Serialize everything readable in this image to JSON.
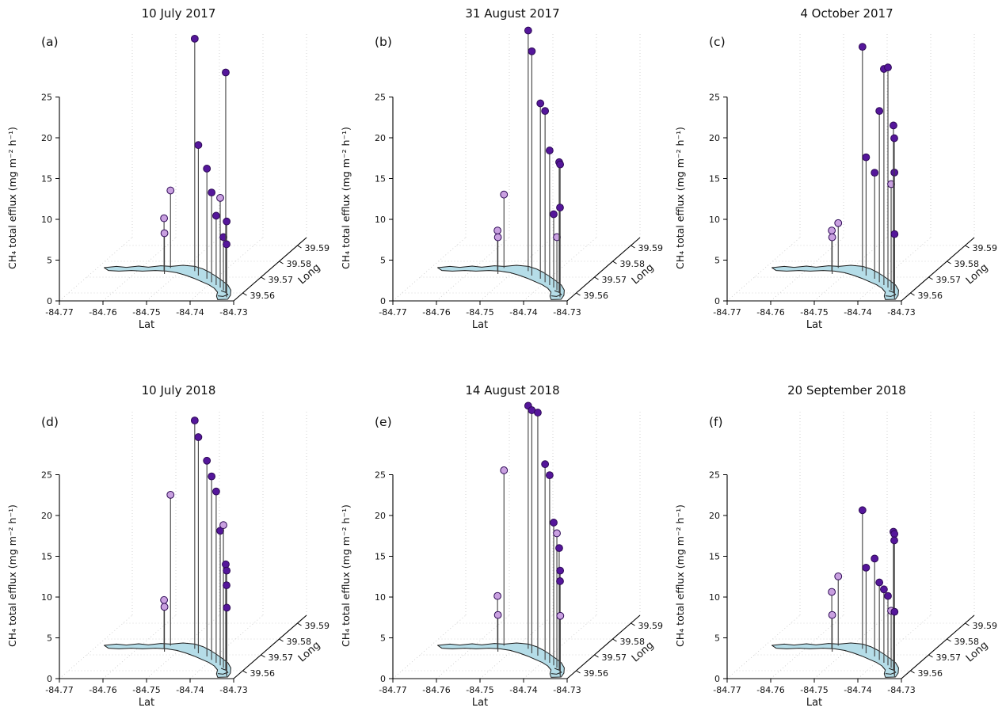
{
  "figure": {
    "colors": {
      "dark_point": "#55169b",
      "light_point": "#c9a0e0",
      "point_edge": "#2d0a55",
      "stem": "#3f3f3f",
      "lake_fill": "#b5dde8",
      "lake_edge": "#1b1b1b",
      "axis": "#000000",
      "grid": "#c9c9c9",
      "text": "#111111"
    }
  },
  "chart_data": {
    "type": "scatter",
    "projection": "3d-stem-map",
    "x_axis": {
      "label": "Lat",
      "ticks": [
        -84.77,
        -84.76,
        -84.75,
        -84.74,
        -84.73
      ],
      "range": [
        -84.77,
        -84.73
      ]
    },
    "depth_axis": {
      "label": "Long",
      "ticks": [
        39.56,
        39.57,
        39.58,
        39.59
      ],
      "range": [
        39.555,
        39.595
      ]
    },
    "z_axis": {
      "label": "CH₄ total efflux (mg m⁻² h⁻¹)",
      "ticks": [
        0,
        5,
        10,
        15,
        20,
        25
      ],
      "range": [
        0,
        25
      ]
    },
    "point_format": [
      "longitude",
      "latitude",
      "efflux_mg_m2_h",
      "color_class(d=dark,l=light)"
    ],
    "lake_polygon": [
      [
        -84.7685,
        39.576
      ],
      [
        -84.766,
        39.5768
      ],
      [
        -84.7635,
        39.5762
      ],
      [
        -84.761,
        39.577
      ],
      [
        -84.7585,
        39.5763
      ],
      [
        -84.756,
        39.5772
      ],
      [
        -84.7535,
        39.5768
      ],
      [
        -84.751,
        39.5775
      ],
      [
        -84.748,
        39.5768
      ],
      [
        -84.7455,
        39.5752
      ],
      [
        -84.743,
        39.573
      ],
      [
        -84.7405,
        39.5705
      ],
      [
        -84.738,
        39.5678
      ],
      [
        -84.7355,
        39.565
      ],
      [
        -84.7335,
        39.5618
      ],
      [
        -84.7322,
        39.5585
      ],
      [
        -84.7318,
        39.556
      ],
      [
        -84.734,
        39.5558
      ],
      [
        -84.7352,
        39.558
      ],
      [
        -84.736,
        39.5605
      ],
      [
        -84.7378,
        39.563
      ],
      [
        -84.74,
        39.5652
      ],
      [
        -84.7425,
        39.5672
      ],
      [
        -84.745,
        39.5692
      ],
      [
        -84.7478,
        39.5712
      ],
      [
        -84.7505,
        39.5728
      ],
      [
        -84.7532,
        39.5738
      ],
      [
        -84.756,
        39.5742
      ],
      [
        -84.7588,
        39.5738
      ],
      [
        -84.7615,
        39.5742
      ],
      [
        -84.7642,
        39.5738
      ],
      [
        -84.7668,
        39.5742
      ]
    ],
    "creek_line": [
      [
        -84.7356,
        39.5615
      ],
      [
        -84.734,
        39.5603
      ],
      [
        -84.733,
        39.559
      ],
      [
        -84.7336,
        39.5578
      ],
      [
        -84.735,
        39.5582
      ]
    ],
    "panels": [
      {
        "label": "(a)",
        "title": "10 July 2017",
        "points": [
          [
            -84.7532,
            39.5758,
            9.5,
            "l"
          ],
          [
            -84.7538,
            39.5737,
            6.5,
            "l"
          ],
          [
            -84.753,
            39.572,
            5.0,
            "l"
          ],
          [
            -84.7468,
            39.5738,
            28.5,
            "d"
          ],
          [
            -84.7448,
            39.571,
            16.0,
            "d"
          ],
          [
            -84.742,
            39.569,
            13.5,
            "d"
          ],
          [
            -84.74,
            39.5668,
            11.0,
            "d"
          ],
          [
            -84.7382,
            39.565,
            8.5,
            "d"
          ],
          [
            -84.7366,
            39.5634,
            11.0,
            "l"
          ],
          [
            -84.7352,
            39.5618,
            6.5,
            "d"
          ],
          [
            -84.734,
            39.5602,
            27.0,
            "d"
          ],
          [
            -84.7332,
            39.5588,
            9.0,
            "d"
          ],
          [
            -84.7326,
            39.5573,
            6.5,
            "d"
          ]
        ]
      },
      {
        "label": "(b)",
        "title": "31 August 2017",
        "points": [
          [
            -84.7532,
            39.5758,
            9.0,
            "l"
          ],
          [
            -84.7538,
            39.5737,
            5.0,
            "l"
          ],
          [
            -84.753,
            39.572,
            4.5,
            "l"
          ],
          [
            -84.7468,
            39.5738,
            29.5,
            "d"
          ],
          [
            -84.7448,
            39.571,
            27.5,
            "d"
          ],
          [
            -84.742,
            39.569,
            21.5,
            "d"
          ],
          [
            -84.74,
            39.5668,
            21.0,
            "d"
          ],
          [
            -84.7382,
            39.565,
            16.5,
            "d"
          ],
          [
            -84.7366,
            39.5634,
            9.0,
            "d"
          ],
          [
            -84.7352,
            39.5618,
            6.5,
            "l"
          ],
          [
            -84.734,
            39.5602,
            16.0,
            "d"
          ],
          [
            -84.7332,
            39.5588,
            16.0,
            "d"
          ],
          [
            -84.7326,
            39.5573,
            11.0,
            "d"
          ]
        ]
      },
      {
        "label": "(c)",
        "title": "4 October 2017",
        "points": [
          [
            -84.7532,
            39.5758,
            5.5,
            "l"
          ],
          [
            -84.7538,
            39.5737,
            5.0,
            "l"
          ],
          [
            -84.753,
            39.572,
            4.5,
            "l"
          ],
          [
            -84.7468,
            39.5738,
            27.5,
            "d"
          ],
          [
            -84.7448,
            39.571,
            14.5,
            "d"
          ],
          [
            -84.742,
            39.569,
            13.0,
            "d"
          ],
          [
            -84.74,
            39.5668,
            21.0,
            "d"
          ],
          [
            -84.7382,
            39.565,
            26.5,
            "d"
          ],
          [
            -84.7366,
            39.5634,
            27.0,
            "d"
          ],
          [
            -84.7352,
            39.5618,
            13.0,
            "l"
          ],
          [
            -84.734,
            39.5602,
            20.5,
            "d"
          ],
          [
            -84.7332,
            39.5588,
            15.0,
            "d"
          ],
          [
            -84.7326,
            39.5573,
            19.5,
            "d"
          ],
          [
            -84.732,
            39.556,
            8.0,
            "d"
          ]
        ]
      },
      {
        "label": "(d)",
        "title": "10 July 2018",
        "points": [
          [
            -84.7532,
            39.5758,
            18.5,
            "l"
          ],
          [
            -84.7538,
            39.5737,
            6.0,
            "l"
          ],
          [
            -84.753,
            39.572,
            5.5,
            "l"
          ],
          [
            -84.7468,
            39.5738,
            28.0,
            "d"
          ],
          [
            -84.7448,
            39.571,
            26.5,
            "d"
          ],
          [
            -84.742,
            39.569,
            24.0,
            "d"
          ],
          [
            -84.74,
            39.5668,
            22.5,
            "d"
          ],
          [
            -84.7382,
            39.565,
            21.0,
            "d"
          ],
          [
            -84.7366,
            39.5634,
            16.5,
            "d"
          ],
          [
            -84.7352,
            39.5618,
            17.5,
            "l"
          ],
          [
            -84.734,
            39.5602,
            13.0,
            "d"
          ],
          [
            -84.7332,
            39.5588,
            12.5,
            "d"
          ],
          [
            -84.7326,
            39.5573,
            11.0,
            "d"
          ],
          [
            -84.732,
            39.556,
            8.5,
            "d"
          ]
        ]
      },
      {
        "label": "(e)",
        "title": "14 August 2018",
        "points": [
          [
            -84.7532,
            39.5758,
            21.5,
            "l"
          ],
          [
            -84.7538,
            39.5737,
            6.5,
            "l"
          ],
          [
            -84.753,
            39.572,
            4.5,
            "l"
          ],
          [
            -84.7468,
            39.5738,
            29.8,
            "d"
          ],
          [
            -84.7448,
            39.571,
            29.8,
            "d"
          ],
          [
            -84.7428,
            39.5695,
            29.8,
            "d"
          ],
          [
            -84.74,
            39.5668,
            24.0,
            "d"
          ],
          [
            -84.7382,
            39.565,
            23.0,
            "d"
          ],
          [
            -84.7366,
            39.5634,
            17.5,
            "d"
          ],
          [
            -84.7352,
            39.5618,
            16.5,
            "l"
          ],
          [
            -84.734,
            39.5602,
            15.0,
            "d"
          ],
          [
            -84.7332,
            39.5588,
            12.5,
            "d"
          ],
          [
            -84.7326,
            39.5573,
            11.5,
            "d"
          ],
          [
            -84.732,
            39.556,
            7.5,
            "l"
          ]
        ]
      },
      {
        "label": "(f)",
        "title": "20 September 2018",
        "points": [
          [
            -84.7532,
            39.5758,
            8.5,
            "l"
          ],
          [
            -84.7538,
            39.5737,
            7.0,
            "l"
          ],
          [
            -84.753,
            39.572,
            4.5,
            "l"
          ],
          [
            -84.7468,
            39.5738,
            17.0,
            "d"
          ],
          [
            -84.7448,
            39.571,
            10.5,
            "d"
          ],
          [
            -84.742,
            39.569,
            12.0,
            "d"
          ],
          [
            -84.74,
            39.5668,
            9.5,
            "d"
          ],
          [
            -84.7382,
            39.565,
            9.0,
            "d"
          ],
          [
            -84.7366,
            39.5634,
            8.5,
            "d"
          ],
          [
            -84.7352,
            39.5618,
            7.0,
            "l"
          ],
          [
            -84.734,
            39.5602,
            17.0,
            "d"
          ],
          [
            -84.7332,
            39.5588,
            17.0,
            "d"
          ],
          [
            -84.7326,
            39.5573,
            16.5,
            "d"
          ],
          [
            -84.732,
            39.556,
            8.0,
            "d"
          ]
        ]
      }
    ]
  }
}
